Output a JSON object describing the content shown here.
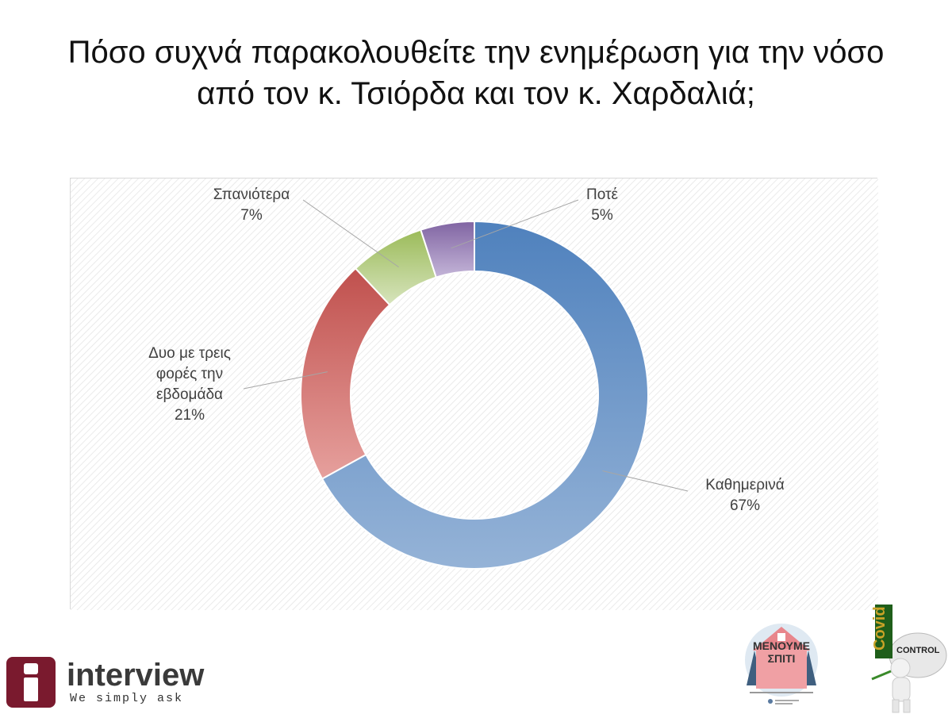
{
  "title_lines": [
    "Πόσο συχνά παρακολουθείτε την ενημέρωση για την νόσο",
    "από τον κ. Τσιόρδα και τον κ. Χαρδαλιά;"
  ],
  "chart_data": {
    "type": "pie",
    "donut": true,
    "title": "Πόσο συχνά παρακολουθείτε την ενημέρωση για την νόσο από τον κ. Τσιόρδα και τον κ. Χαρδαλιά;",
    "categories": [
      "Καθημερινά",
      "Δυο με τρεις φορές την εβδομάδα",
      "Σπανιότερα",
      "Ποτέ"
    ],
    "values": [
      67,
      21,
      7,
      5
    ],
    "value_labels": [
      "67%",
      "21%",
      "7%",
      "5%"
    ],
    "label_lines": [
      [
        "Καθημερινά"
      ],
      [
        "Δυο με τρεις",
        "φορές την",
        "εβδομάδα"
      ],
      [
        "Σπανιότερα"
      ],
      [
        "Ποτέ"
      ]
    ],
    "colors": [
      "#4f81bd",
      "#c0504d",
      "#9bbb59",
      "#8064a2"
    ],
    "colors_light": [
      "#95b3d7",
      "#e6a09d",
      "#d7e4bd",
      "#c4b5d8"
    ],
    "legend": "none"
  },
  "branding": {
    "interview_word": "interview",
    "interview_tagline": "We simply ask",
    "stay_home": [
      "ΜΕΝΟΥΜΕ",
      "ΣΠΙΤΙ"
    ],
    "covid_word": "Covid",
    "control_word": "CONTROL"
  },
  "icons": [
    "interview-logo-icon",
    "stay-home-house-icon",
    "covid-control-figure-icon"
  ]
}
